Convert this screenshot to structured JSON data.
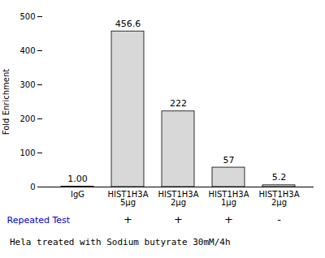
{
  "chart_data": {
    "type": "bar",
    "categories": [
      "IgG",
      "HIST1H3A\n5μg",
      "HIST1H3A\n2μg",
      "HIST1H3A\n1μg",
      "HIST1H3A\n2μg"
    ],
    "values": [
      1.0,
      456.6,
      222,
      57,
      5.2
    ],
    "value_labels": [
      "1.00",
      "456.6",
      "222",
      "57",
      "5.2"
    ],
    "data_labels": true,
    "color": "#d8d8d8",
    "ylabel": "Fold Enrichment",
    "ylim": [
      0,
      500
    ],
    "yticks": [
      0,
      100,
      200,
      300,
      400,
      500
    ],
    "grid": false,
    "sign_row": {
      "label": "Repeated Test",
      "color": "#0000cc",
      "signs": [
        null,
        "+",
        "+",
        "+",
        "-"
      ]
    },
    "caption": "Hela treated with Sodium butyrate 30mM/4h"
  }
}
